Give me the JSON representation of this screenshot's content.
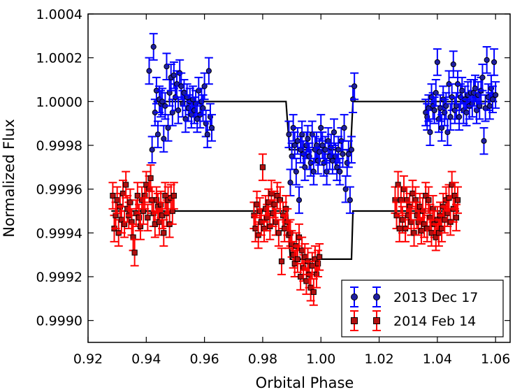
{
  "chart_data": {
    "type": "scatter",
    "xlabel": "Orbital Phase",
    "ylabel": "Normalized Flux",
    "xlim": [
      0.92,
      1.065
    ],
    "ylim": [
      0.9989,
      1.0004
    ],
    "xticks": [
      "0.92",
      "0.94",
      "0.96",
      "0.98",
      "1.00",
      "1.02",
      "1.04",
      "1.06"
    ],
    "yticks": [
      "0.9990",
      "0.9992",
      "0.9994",
      "0.9996",
      "0.9998",
      "1.0000",
      "1.0002",
      "1.0004"
    ],
    "grid": false,
    "legend_position": "bottom-right",
    "series": [
      {
        "name": "2013 Dec 17",
        "marker": "circle",
        "color": "#0000ff",
        "marker_face": "#1f1fa0",
        "error": 6e-05,
        "points": [
          [
            0.941,
            1.00014
          ],
          [
            0.942,
            0.99978
          ],
          [
            0.9425,
            1.00025
          ],
          [
            0.943,
            0.99995
          ],
          [
            0.9435,
            1.00005
          ],
          [
            0.944,
            0.99985
          ],
          [
            0.9445,
            1.00001
          ],
          [
            0.945,
            0.99999
          ],
          [
            0.9455,
            1.0
          ],
          [
            0.946,
            0.99983
          ],
          [
            0.9465,
            0.99998
          ],
          [
            0.947,
            1.00016
          ],
          [
            0.9475,
            0.99988
          ],
          [
            0.948,
            1.00004
          ],
          [
            0.9485,
            1.00011
          ],
          [
            0.949,
            0.99995
          ],
          [
            0.9495,
            1.00012
          ],
          [
            0.95,
            1.00002
          ],
          [
            0.9505,
            1.00008
          ],
          [
            0.951,
            0.99996
          ],
          [
            0.9515,
            1.00013
          ],
          [
            0.952,
            1.00007
          ],
          [
            0.9525,
            0.99999
          ],
          [
            0.953,
            1.00004
          ],
          [
            0.9535,
            0.99992
          ],
          [
            0.954,
            1.00002
          ],
          [
            0.9545,
            0.99997
          ],
          [
            0.955,
            1.0
          ],
          [
            0.9555,
            0.99994
          ],
          [
            0.956,
            1.00001
          ],
          [
            0.9565,
            0.99996
          ],
          [
            0.957,
            0.99999
          ],
          [
            0.9575,
            0.99992
          ],
          [
            0.958,
            1.00005
          ],
          [
            0.9585,
            0.99994
          ],
          [
            0.959,
            1.0
          ],
          [
            0.9595,
            0.99997
          ],
          [
            0.96,
            1.00007
          ],
          [
            0.9605,
            0.9999
          ],
          [
            0.961,
            0.99985
          ],
          [
            0.9615,
            1.00014
          ],
          [
            0.962,
            0.99993
          ],
          [
            0.9625,
            0.99988
          ],
          [
            0.989,
            0.99985
          ],
          [
            0.9895,
            0.99963
          ],
          [
            0.99,
            0.99975
          ],
          [
            0.9905,
            0.99988
          ],
          [
            0.991,
            0.9998
          ],
          [
            0.9915,
            0.99968
          ],
          [
            0.992,
            0.99982
          ],
          [
            0.9925,
            0.99955
          ],
          [
            0.993,
            0.99978
          ],
          [
            0.9935,
            0.99985
          ],
          [
            0.994,
            0.99976
          ],
          [
            0.9945,
            0.9997
          ],
          [
            0.995,
            0.9998
          ],
          [
            0.9955,
            0.99983
          ],
          [
            0.996,
            0.99975
          ],
          [
            0.9965,
            0.99972
          ],
          [
            0.997,
            0.99985
          ],
          [
            0.9975,
            0.99968
          ],
          [
            0.998,
            0.99978
          ],
          [
            0.9985,
            0.9998
          ],
          [
            0.999,
            0.99973
          ],
          [
            0.9995,
            0.99977
          ],
          [
            1.0,
            0.99988
          ],
          [
            1.0005,
            0.9998
          ],
          [
            1.001,
            0.99972
          ],
          [
            1.0015,
            0.99978
          ],
          [
            1.002,
            0.99968
          ],
          [
            1.0025,
            0.99982
          ],
          [
            1.003,
            0.99975
          ],
          [
            1.0035,
            0.99979
          ],
          [
            1.004,
            0.99973
          ],
          [
            1.0045,
            0.99986
          ],
          [
            1.005,
            0.99975
          ],
          [
            1.0055,
            0.9997
          ],
          [
            1.006,
            0.99978
          ],
          [
            1.0065,
            0.99968
          ],
          [
            1.007,
            0.99982
          ],
          [
            1.0075,
            0.99976
          ],
          [
            1.008,
            0.99988
          ],
          [
            1.0085,
            0.9996
          ],
          [
            1.009,
            0.99972
          ],
          [
            1.0095,
            0.99976
          ],
          [
            1.01,
            0.99955
          ],
          [
            1.0105,
            0.99978
          ],
          [
            1.011,
            1.00001
          ],
          [
            1.0115,
            1.00007
          ],
          [
            1.036,
            0.99995
          ],
          [
            1.0365,
            0.99993
          ],
          [
            1.037,
            0.99997
          ],
          [
            1.0375,
            0.99986
          ],
          [
            1.038,
            1.00002
          ],
          [
            1.0385,
            0.99998
          ],
          [
            1.039,
            0.99996
          ],
          [
            1.0395,
            1.00004
          ],
          [
            1.04,
            1.00018
          ],
          [
            1.0405,
            0.99992
          ],
          [
            1.041,
            0.99997
          ],
          [
            1.0415,
            0.99988
          ],
          [
            1.042,
            1.00001
          ],
          [
            1.0425,
            0.99995
          ],
          [
            1.043,
            0.99998
          ],
          [
            1.0435,
            0.99986
          ],
          [
            1.044,
            1.00008
          ],
          [
            1.0445,
            0.99993
          ],
          [
            1.045,
            1.00002
          ],
          [
            1.0455,
            1.00017
          ],
          [
            1.046,
            0.99996
          ],
          [
            1.0465,
            0.99998
          ],
          [
            1.047,
            1.00008
          ],
          [
            1.0475,
            0.99993
          ],
          [
            1.048,
            1.00002
          ],
          [
            1.0485,
            1.00005
          ],
          [
            1.049,
            0.99996
          ],
          [
            1.0495,
            1.00001
          ],
          [
            1.05,
            0.99995
          ],
          [
            1.0505,
            1.00003
          ],
          [
            1.051,
            0.99998
          ],
          [
            1.0515,
            1.00004
          ],
          [
            1.052,
            0.99999
          ],
          [
            1.0525,
            1.00004
          ],
          [
            1.053,
            1.00006
          ],
          [
            1.0535,
            0.99996
          ],
          [
            1.054,
            1.00003
          ],
          [
            1.0545,
            0.99998
          ],
          [
            1.055,
            1.00005
          ],
          [
            1.0555,
            1.00011
          ],
          [
            1.056,
            0.99982
          ],
          [
            1.0565,
            0.99997
          ],
          [
            1.057,
            1.00019
          ],
          [
            1.0575,
            1.00002
          ],
          [
            1.058,
            0.99998
          ],
          [
            1.0585,
            1.00006
          ],
          [
            1.059,
            1.00001
          ],
          [
            1.0595,
            1.00018
          ],
          [
            1.06,
            1.00003
          ]
        ]
      },
      {
        "name": "2014 Feb 14",
        "marker": "square",
        "color": "#ff0000",
        "marker_face": "#b01010",
        "error": 6e-05,
        "points": [
          [
            0.9285,
            0.99957
          ],
          [
            0.929,
            0.99942
          ],
          [
            0.9295,
            0.99948
          ],
          [
            0.93,
            0.99955
          ],
          [
            0.9305,
            0.9994
          ],
          [
            0.931,
            0.99952
          ],
          [
            0.9315,
            0.99946
          ],
          [
            0.932,
            0.99958
          ],
          [
            0.9325,
            0.99944
          ],
          [
            0.933,
            0.99962
          ],
          [
            0.9335,
            0.99951
          ],
          [
            0.934,
            0.99948
          ],
          [
            0.9345,
            0.99954
          ],
          [
            0.935,
            0.99945
          ],
          [
            0.9355,
            0.99938
          ],
          [
            0.936,
            0.99931
          ],
          [
            0.9365,
            0.99949
          ],
          [
            0.937,
            0.99957
          ],
          [
            0.9375,
            0.99947
          ],
          [
            0.938,
            0.99943
          ],
          [
            0.9385,
            0.99955
          ],
          [
            0.939,
            0.9995
          ],
          [
            0.9395,
            0.99957
          ],
          [
            0.94,
            0.99962
          ],
          [
            0.9405,
            0.99947
          ],
          [
            0.941,
            0.9996
          ],
          [
            0.9415,
            0.99965
          ],
          [
            0.942,
            0.99955
          ],
          [
            0.9425,
            0.99949
          ],
          [
            0.943,
            0.99944
          ],
          [
            0.9435,
            0.99955
          ],
          [
            0.944,
            0.99952
          ],
          [
            0.9445,
            0.99945
          ],
          [
            0.945,
            0.99953
          ],
          [
            0.9455,
            0.99948
          ],
          [
            0.946,
            0.9994
          ],
          [
            0.9465,
            0.99957
          ],
          [
            0.947,
            0.99949
          ],
          [
            0.9475,
            0.99955
          ],
          [
            0.948,
            0.99944
          ],
          [
            0.9485,
            0.99956
          ],
          [
            0.949,
            0.9995
          ],
          [
            0.9495,
            0.99957
          ],
          [
            0.977,
            0.99948
          ],
          [
            0.9775,
            0.99942
          ],
          [
            0.978,
            0.99953
          ],
          [
            0.9785,
            0.99939
          ],
          [
            0.979,
            0.9995
          ],
          [
            0.9795,
            0.99945
          ],
          [
            0.98,
            0.9997
          ],
          [
            0.9805,
            0.99942
          ],
          [
            0.981,
            0.99951
          ],
          [
            0.9815,
            0.99947
          ],
          [
            0.982,
            0.99954
          ],
          [
            0.9825,
            0.99943
          ],
          [
            0.983,
            0.99958
          ],
          [
            0.9835,
            0.99949
          ],
          [
            0.984,
            0.99953
          ],
          [
            0.9845,
            0.99945
          ],
          [
            0.985,
            0.99957
          ],
          [
            0.9855,
            0.9994
          ],
          [
            0.986,
            0.99955
          ],
          [
            0.9865,
            0.99927
          ],
          [
            0.987,
            0.99948
          ],
          [
            0.9875,
            0.99942
          ],
          [
            0.988,
            0.99951
          ],
          [
            0.9885,
            0.99945
          ],
          [
            0.989,
            0.99939
          ],
          [
            0.9895,
            0.9994
          ],
          [
            0.99,
            0.99935
          ],
          [
            0.9905,
            0.9993
          ],
          [
            0.991,
            0.99926
          ],
          [
            0.9915,
            0.99934
          ],
          [
            0.992,
            0.99928
          ],
          [
            0.9925,
            0.99938
          ],
          [
            0.993,
            0.9992
          ],
          [
            0.9935,
            0.99932
          ],
          [
            0.994,
            0.99924
          ],
          [
            0.9945,
            0.99929
          ],
          [
            0.995,
            0.99918
          ],
          [
            0.9955,
            0.99927
          ],
          [
            0.996,
            0.99921
          ],
          [
            0.9965,
            0.99915
          ],
          [
            0.997,
            0.99925
          ],
          [
            0.9975,
            0.99913
          ],
          [
            0.998,
            0.99928
          ],
          [
            0.9985,
            0.99921
          ],
          [
            0.999,
            0.99926
          ],
          [
            0.9995,
            0.99929
          ],
          [
            1.0255,
            0.99955
          ],
          [
            1.026,
            0.99948
          ],
          [
            1.0265,
            0.99962
          ],
          [
            1.027,
            0.99942
          ],
          [
            1.0275,
            0.99955
          ],
          [
            1.028,
            0.99946
          ],
          [
            1.0285,
            0.9996
          ],
          [
            1.029,
            0.99942
          ],
          [
            1.0295,
            0.99955
          ],
          [
            1.03,
            0.99948
          ],
          [
            1.0305,
            0.99952
          ],
          [
            1.031,
            0.99945
          ],
          [
            1.0315,
            0.99958
          ],
          [
            1.032,
            0.9994
          ],
          [
            1.0325,
            0.99955
          ],
          [
            1.033,
            0.99948
          ],
          [
            1.0335,
            0.99945
          ],
          [
            1.034,
            0.99952
          ],
          [
            1.0345,
            0.99941
          ],
          [
            1.035,
            0.9995
          ],
          [
            1.0355,
            0.99944
          ],
          [
            1.036,
            0.99957
          ],
          [
            1.0365,
            0.99942
          ],
          [
            1.037,
            0.99955
          ],
          [
            1.0375,
            0.99947
          ],
          [
            1.038,
            0.9994
          ],
          [
            1.0385,
            0.99951
          ],
          [
            1.039,
            0.99944
          ],
          [
            1.0395,
            0.99938
          ],
          [
            1.04,
            0.99946
          ],
          [
            1.0405,
            0.9994
          ],
          [
            1.041,
            0.99948
          ],
          [
            1.0415,
            0.99942
          ],
          [
            1.042,
            0.99952
          ],
          [
            1.0425,
            0.99946
          ],
          [
            1.043,
            0.99955
          ],
          [
            1.0435,
            0.99949
          ],
          [
            1.044,
            0.99956
          ],
          [
            1.0445,
            0.99945
          ],
          [
            1.045,
            0.99962
          ],
          [
            1.0455,
            0.99951
          ],
          [
            1.046,
            0.99957
          ],
          [
            1.0465,
            0.99947
          ],
          [
            1.047,
            0.99955
          ]
        ]
      }
    ],
    "models": [
      {
        "color": "#000000",
        "points": [
          [
            0.9425,
            1.0
          ],
          [
            0.988,
            1.0
          ],
          [
            0.9892,
            0.99978
          ],
          [
            1.0102,
            0.99978
          ],
          [
            1.011,
            1.0
          ],
          [
            1.0605,
            1.0
          ]
        ]
      },
      {
        "color": "#000000",
        "points": [
          [
            0.928,
            0.9995
          ],
          [
            0.9885,
            0.9995
          ],
          [
            0.9895,
            0.99928
          ],
          [
            1.0105,
            0.99928
          ],
          [
            1.011,
            0.9995
          ],
          [
            1.0475,
            0.9995
          ]
        ]
      }
    ]
  }
}
